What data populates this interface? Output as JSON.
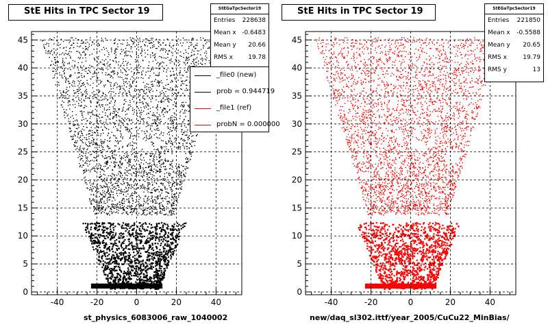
{
  "charts": [
    {
      "title": "StE Hits in TPC Sector 19",
      "xlabel": "st_physics_6083006_raw_1040002",
      "color": "#000000",
      "stats": {
        "name": "StEGaTpcSector19",
        "rows": [
          {
            "label": "Entries",
            "value": "228638"
          },
          {
            "label": "Mean x",
            "value": "-0.6483"
          },
          {
            "label": "Mean y",
            "value": "20.66"
          },
          {
            "label": "RMS x",
            "value": "19.78"
          }
        ]
      },
      "legend": [
        {
          "label": "_file0 (new)",
          "color": "#000000"
        },
        {
          "label": "prob = 0.944719",
          "color": "#000000"
        },
        {
          "label": "_file1 (ref)",
          "color": "#ff0000"
        },
        {
          "label": "probN = 0.000000",
          "color": "#ff0000"
        }
      ]
    },
    {
      "title": "StE Hits in TPC Sector 19",
      "xlabel": "new/daq_sl302.ittf/year_2005/CuCu22_MinBias/",
      "color": "#ff0000",
      "stats": {
        "name": "StEGaTpcSector19",
        "rows": [
          {
            "label": "Entries",
            "value": "221850"
          },
          {
            "label": "Mean x",
            "value": "-0.5588"
          },
          {
            "label": "Mean y",
            "value": "20.65"
          },
          {
            "label": "RMS x",
            "value": "19.79"
          },
          {
            "label": "RMS y",
            "value": "13"
          }
        ]
      },
      "legend": []
    }
  ],
  "chart_data": [
    {
      "type": "scatter",
      "title": "StE Hits in TPC Sector 19",
      "xlabel": "st_physics_6083006_raw_1040002",
      "ylabel": "",
      "xlim": [
        -53,
        53
      ],
      "ylim": [
        -0.5,
        46.5
      ],
      "xticks": [
        -40,
        -20,
        0,
        20,
        40
      ],
      "yticks": [
        0,
        5,
        10,
        15,
        20,
        25,
        30,
        35,
        40,
        45
      ],
      "grid": true,
      "series": [
        {
          "name": "_file0 (new)",
          "color": "#000000"
        }
      ]
    },
    {
      "type": "scatter",
      "title": "StE Hits in TPC Sector 19",
      "xlabel": "new/daq_sl302.ittf/year_2005/CuCu22_MinBias/",
      "ylabel": "",
      "xlim": [
        -53,
        53
      ],
      "ylim": [
        -0.5,
        46.5
      ],
      "xticks": [
        -40,
        -20,
        0,
        20,
        40
      ],
      "yticks": [
        0,
        5,
        10,
        15,
        20,
        25,
        30,
        35,
        40,
        45
      ],
      "grid": true,
      "series": [
        {
          "name": "_file1 (ref)",
          "color": "#ff0000"
        }
      ]
    }
  ]
}
